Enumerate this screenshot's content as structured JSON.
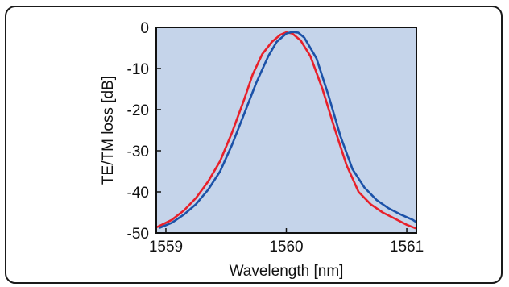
{
  "chart_data": {
    "type": "line",
    "title": "",
    "xlabel": "Wavelength [nm]",
    "ylabel": "TE/TM loss [dB]",
    "xlim": [
      1558.92,
      1561.08
    ],
    "ylim": [
      -50,
      0
    ],
    "xticks": [
      1559,
      1560,
      1561
    ],
    "yticks": [
      0,
      -10,
      -20,
      -30,
      -40,
      -50
    ],
    "grid": false,
    "legend": "none",
    "plot_background": "#c5d4ea",
    "series": [
      {
        "color": "#e8202a",
        "x": [
          1558.93,
          1559.05,
          1559.15,
          1559.25,
          1559.35,
          1559.45,
          1559.55,
          1559.65,
          1559.72,
          1559.8,
          1559.88,
          1559.95,
          1560.0,
          1560.05,
          1560.12,
          1560.2,
          1560.3,
          1560.4,
          1560.5,
          1560.6,
          1560.7,
          1560.8,
          1560.9,
          1561.0,
          1561.07
        ],
        "y": [
          -48.5,
          -46.8,
          -44.5,
          -41.5,
          -37.5,
          -32.5,
          -25.5,
          -17.5,
          -11.5,
          -6.5,
          -3.5,
          -1.8,
          -1.2,
          -1.5,
          -3.2,
          -7.0,
          -15.0,
          -24.5,
          -33.5,
          -40.0,
          -43.0,
          -45.0,
          -46.5,
          -48.0,
          -48.8
        ]
      },
      {
        "color": "#1c52a8",
        "x": [
          1558.95,
          1559.05,
          1559.15,
          1559.25,
          1559.35,
          1559.45,
          1559.55,
          1559.65,
          1559.75,
          1559.85,
          1559.92,
          1560.0,
          1560.05,
          1560.1,
          1560.15,
          1560.25,
          1560.35,
          1560.45,
          1560.55,
          1560.65,
          1560.75,
          1560.85,
          1560.95,
          1561.05,
          1561.07
        ],
        "y": [
          -48.7,
          -47.5,
          -45.5,
          -43.0,
          -39.5,
          -35.0,
          -28.5,
          -21.0,
          -13.5,
          -7.0,
          -3.5,
          -1.5,
          -1.1,
          -1.3,
          -2.5,
          -7.5,
          -16.5,
          -26.5,
          -34.5,
          -39.0,
          -42.0,
          -44.0,
          -45.5,
          -46.8,
          -47.2
        ]
      }
    ]
  }
}
